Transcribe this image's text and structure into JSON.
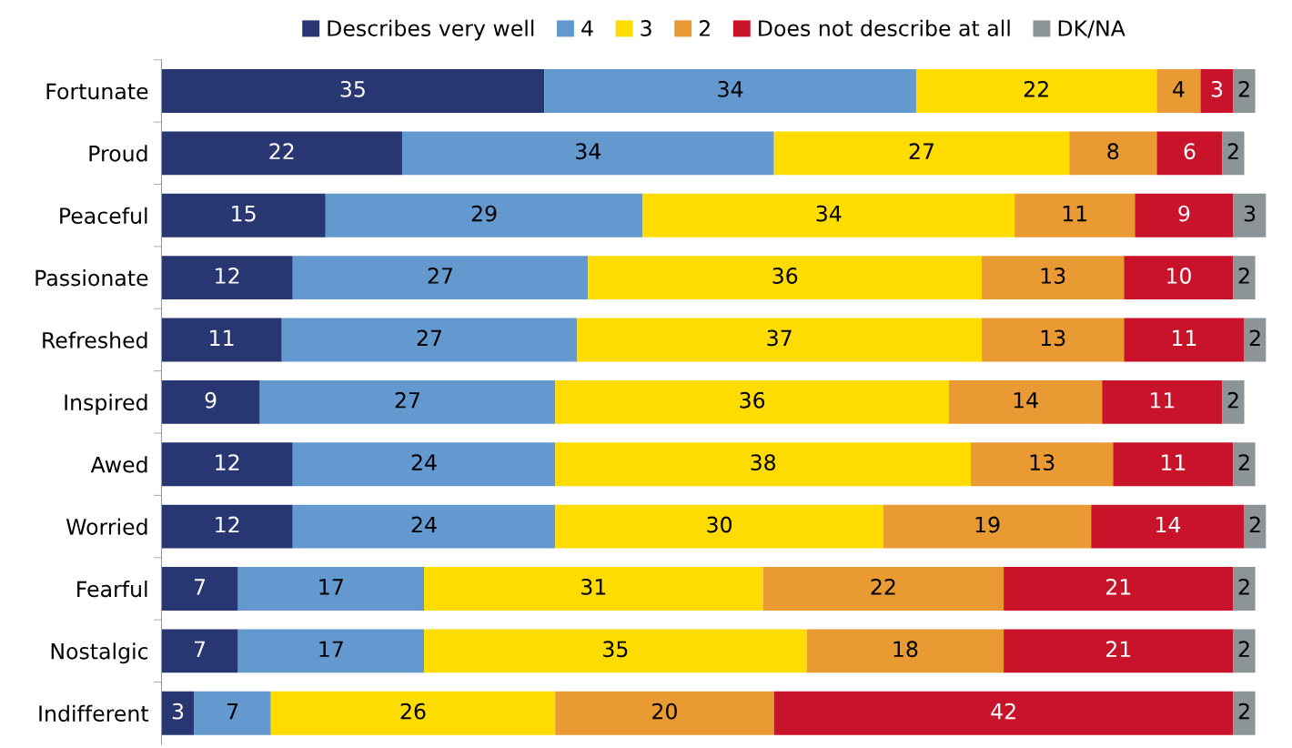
{
  "chart_data": {
    "type": "bar",
    "orientation": "horizontal",
    "stacked": true,
    "data_labels": true,
    "legend": "top",
    "grid": false,
    "tick_labels": "y",
    "xlim": [
      0,
      101
    ],
    "categories": [
      "Fortunate",
      "Proud",
      "Peaceful",
      "Passionate",
      "Refreshed",
      "Inspired",
      "Awed",
      "Worried",
      "Fearful",
      "Nostalgic",
      "Indifferent"
    ],
    "series": [
      {
        "name": "Describes very well",
        "color": "#283671",
        "values": [
          35,
          22,
          15,
          12,
          11,
          9,
          12,
          12,
          7,
          7,
          3
        ]
      },
      {
        "name": "4",
        "color": "#6399cf",
        "values": [
          34,
          34,
          29,
          27,
          27,
          27,
          24,
          24,
          17,
          17,
          7
        ]
      },
      {
        "name": "3",
        "color": "#ffdc00",
        "values": [
          22,
          27,
          34,
          36,
          37,
          36,
          38,
          30,
          31,
          35,
          26
        ]
      },
      {
        "name": "2",
        "color": "#e99a33",
        "values": [
          4,
          8,
          11,
          13,
          13,
          14,
          13,
          19,
          22,
          18,
          20
        ]
      },
      {
        "name": "Does not describe at all",
        "color": "#c8132a",
        "values": [
          3,
          6,
          9,
          10,
          11,
          11,
          11,
          14,
          21,
          21,
          42
        ]
      },
      {
        "name": "DK/NA",
        "color": "#8c9497",
        "values": [
          2,
          2,
          3,
          2,
          2,
          2,
          2,
          2,
          2,
          2,
          2
        ]
      }
    ]
  }
}
